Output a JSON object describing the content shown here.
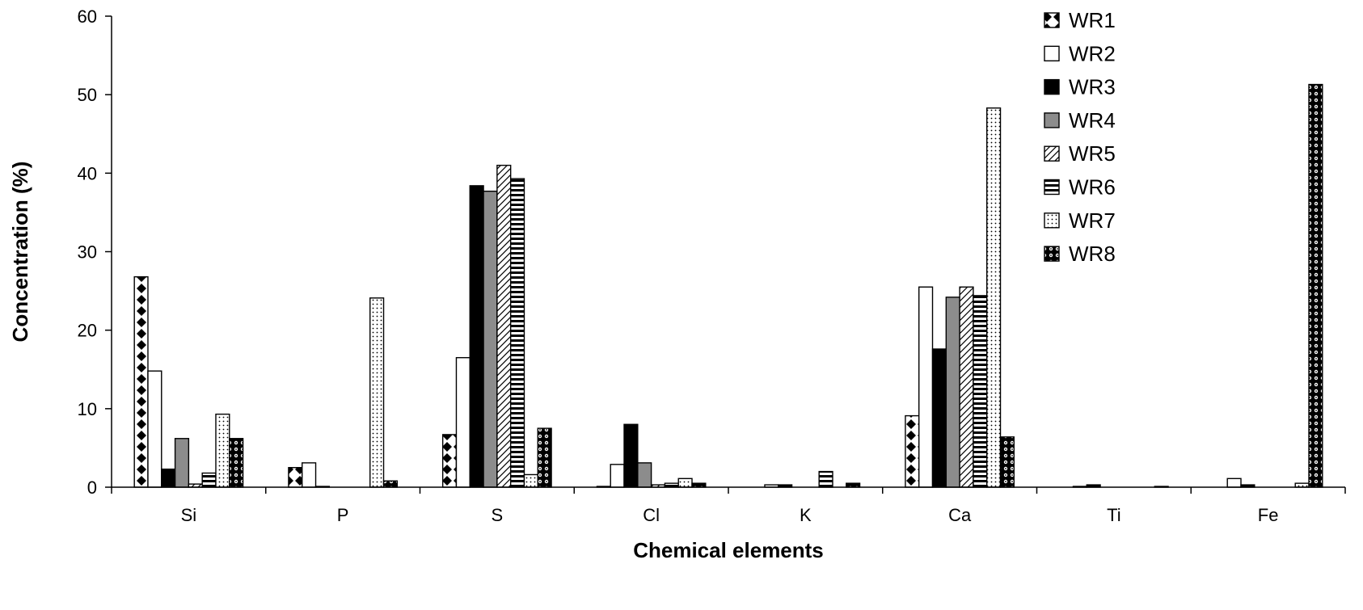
{
  "chart_data": {
    "type": "bar",
    "title": "",
    "xlabel": "Chemical elements",
    "ylabel": "Concentration (%)",
    "ylim": [
      0,
      60
    ],
    "yticks": [
      "0",
      "10",
      "20",
      "30",
      "40",
      "50",
      "60"
    ],
    "grid": false,
    "legend_position": "top-right",
    "categories": [
      "Si",
      "P",
      "S",
      "Cl",
      "K",
      "Ca",
      "Ti",
      "Fe"
    ],
    "series": [
      {
        "name": "WR1",
        "pattern": "diamonds",
        "values": [
          26.8,
          2.5,
          6.7,
          0.1,
          0.0,
          9.1,
          0.0,
          0.0
        ]
      },
      {
        "name": "WR2",
        "pattern": "white",
        "values": [
          14.8,
          3.1,
          16.5,
          2.9,
          0.3,
          25.5,
          0.1,
          1.1
        ]
      },
      {
        "name": "WR3",
        "pattern": "black",
        "values": [
          2.3,
          0.1,
          38.4,
          8.0,
          0.3,
          17.6,
          0.3,
          0.3
        ]
      },
      {
        "name": "WR4",
        "pattern": "gray",
        "values": [
          6.2,
          0.0,
          37.7,
          3.1,
          0.0,
          24.2,
          0.0,
          0.0
        ]
      },
      {
        "name": "WR5",
        "pattern": "diagonal",
        "values": [
          0.4,
          0.0,
          41.0,
          0.3,
          0.0,
          25.5,
          0.0,
          0.0
        ]
      },
      {
        "name": "WR6",
        "pattern": "hstripes",
        "values": [
          1.8,
          0.0,
          39.3,
          0.5,
          2.0,
          24.4,
          0.0,
          0.0
        ]
      },
      {
        "name": "WR7",
        "pattern": "dots",
        "values": [
          9.3,
          24.1,
          1.6,
          1.1,
          0.0,
          48.3,
          0.0,
          0.5
        ]
      },
      {
        "name": "WR8",
        "pattern": "circles",
        "values": [
          6.2,
          0.8,
          7.5,
          0.5,
          0.5,
          6.4,
          0.1,
          51.3
        ]
      }
    ]
  }
}
